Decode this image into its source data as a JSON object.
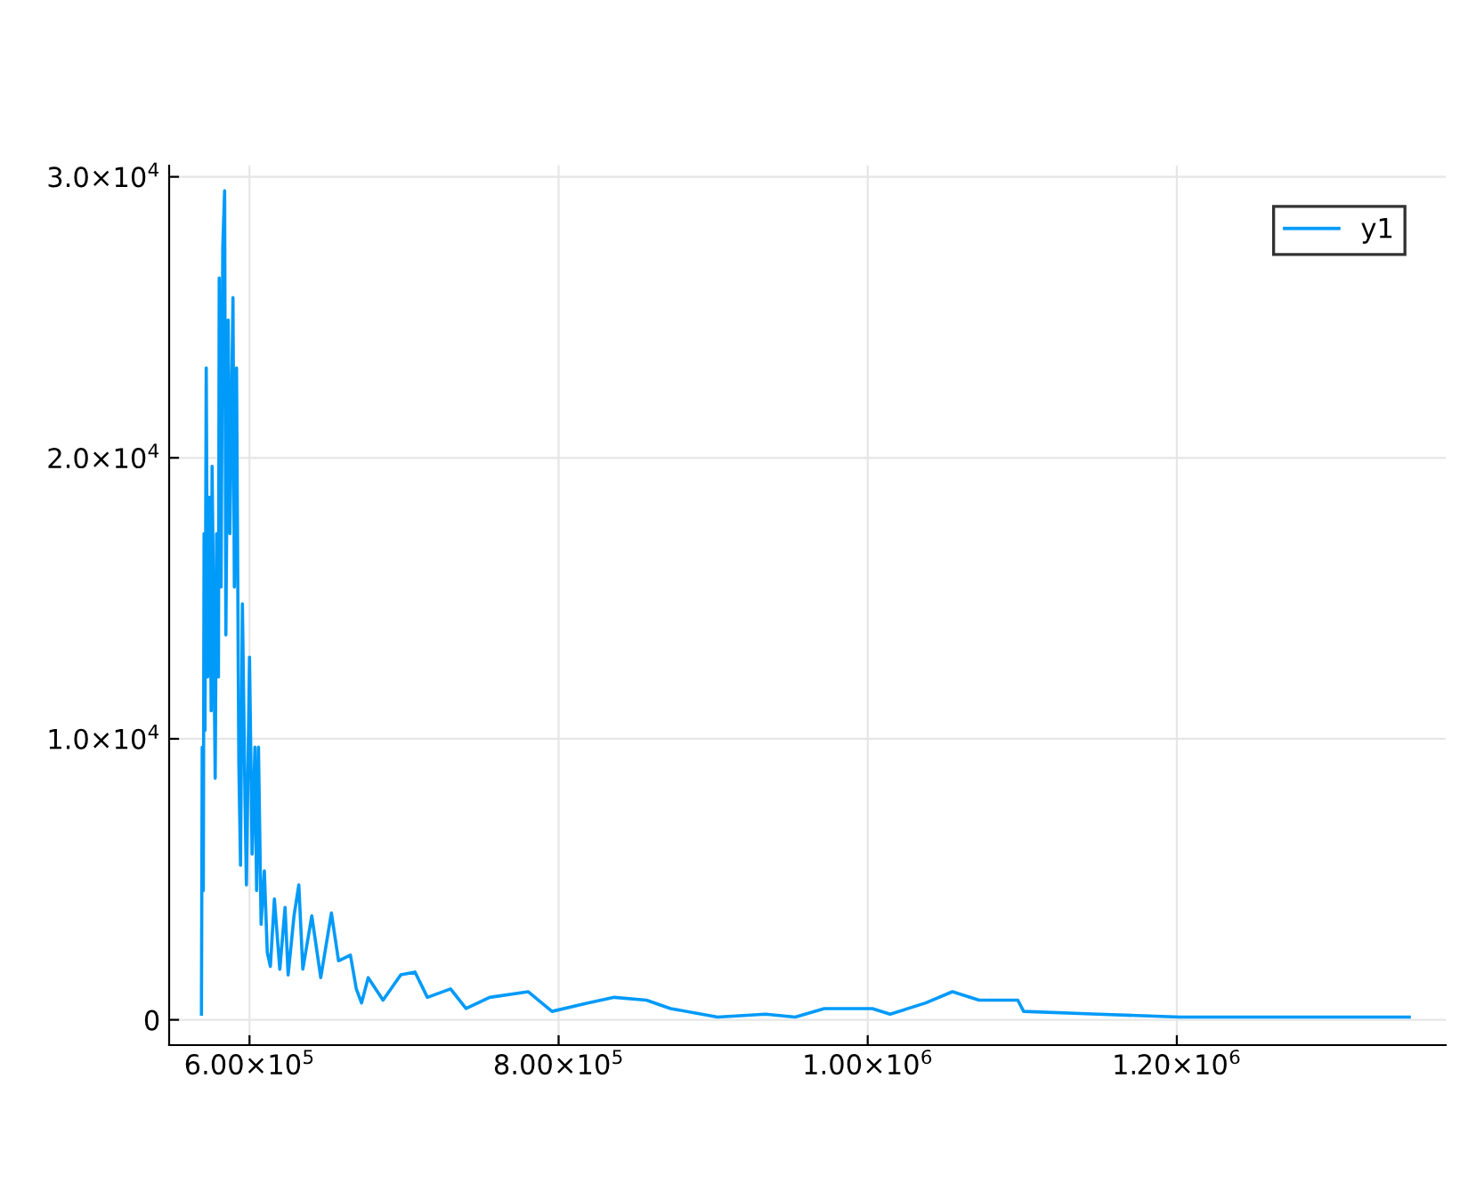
{
  "chart_data": {
    "type": "line",
    "series": [
      {
        "name": "y1",
        "color": "#009af9",
        "x": [
          568900,
          569400,
          570100,
          570600,
          571200,
          572000,
          572900,
          574100,
          575200,
          575800,
          577800,
          578700,
          579900,
          580400,
          581600,
          582700,
          583900,
          584700,
          586200,
          587300,
          589300,
          590200,
          591600,
          593100,
          594200,
          595400,
          597100,
          598000,
          600000,
          601700,
          603500,
          604600,
          605800,
          607500,
          609600,
          611500,
          613500,
          616100,
          619600,
          623000,
          625000,
          628800,
          631900,
          634500,
          640300,
          646100,
          653000,
          657600,
          665300,
          669100,
          672500,
          676800,
          686400,
          697900,
          707100,
          715100,
          730100,
          740100,
          755400,
          780400,
          795700,
          818800,
          836000,
          856800,
          872500,
          902800,
          933900,
          953100,
          971900,
          1003000,
          1014500,
          1037500,
          1054800,
          1072100,
          1097100,
          1100900,
          1148900,
          1202200,
          1282800,
          1350400
        ],
        "values": [
          200,
          9700,
          4600,
          17300,
          10300,
          23200,
          12200,
          18600,
          11000,
          19700,
          8600,
          17300,
          12200,
          26400,
          15400,
          27500,
          29500,
          13700,
          24900,
          17300,
          25700,
          15400,
          23200,
          9100,
          5500,
          14800,
          7800,
          4800,
          12900,
          5900,
          9700,
          4600,
          9700,
          3400,
          5300,
          2400,
          1900,
          4300,
          1800,
          4000,
          1600,
          3700,
          4800,
          1800,
          3700,
          1500,
          3800,
          2100,
          2300,
          1100,
          600,
          1500,
          700,
          1600,
          1700,
          800,
          1100,
          400,
          800,
          1000,
          300,
          600,
          800,
          700,
          400,
          100,
          200,
          100,
          400,
          400,
          200,
          600,
          1000,
          700,
          700,
          300,
          200,
          100,
          100,
          100
        ]
      }
    ],
    "xlim": [
      548000,
      1374000
    ],
    "ylim": [
      -900,
      30400
    ],
    "xticks": [
      {
        "value": 600000,
        "label": "6.00×10$^{5}$"
      },
      {
        "value": 800000,
        "label": "8.00×10$^{5}$"
      },
      {
        "value": 1000000,
        "label": "1.00×10$^{6}$"
      },
      {
        "value": 1200000,
        "label": "1.20×10$^{6}$"
      }
    ],
    "yticks": [
      0,
      {
        "value": 10000,
        "label": "1.0×10$^{4}$"
      },
      {
        "value": 20000,
        "label": "2.0×10$^{4}$"
      },
      {
        "value": 30000,
        "label": "3.0×10$^{4}$"
      }
    ],
    "grid": true,
    "legend": "top right",
    "marker": "none",
    "line_style": "solid"
  }
}
